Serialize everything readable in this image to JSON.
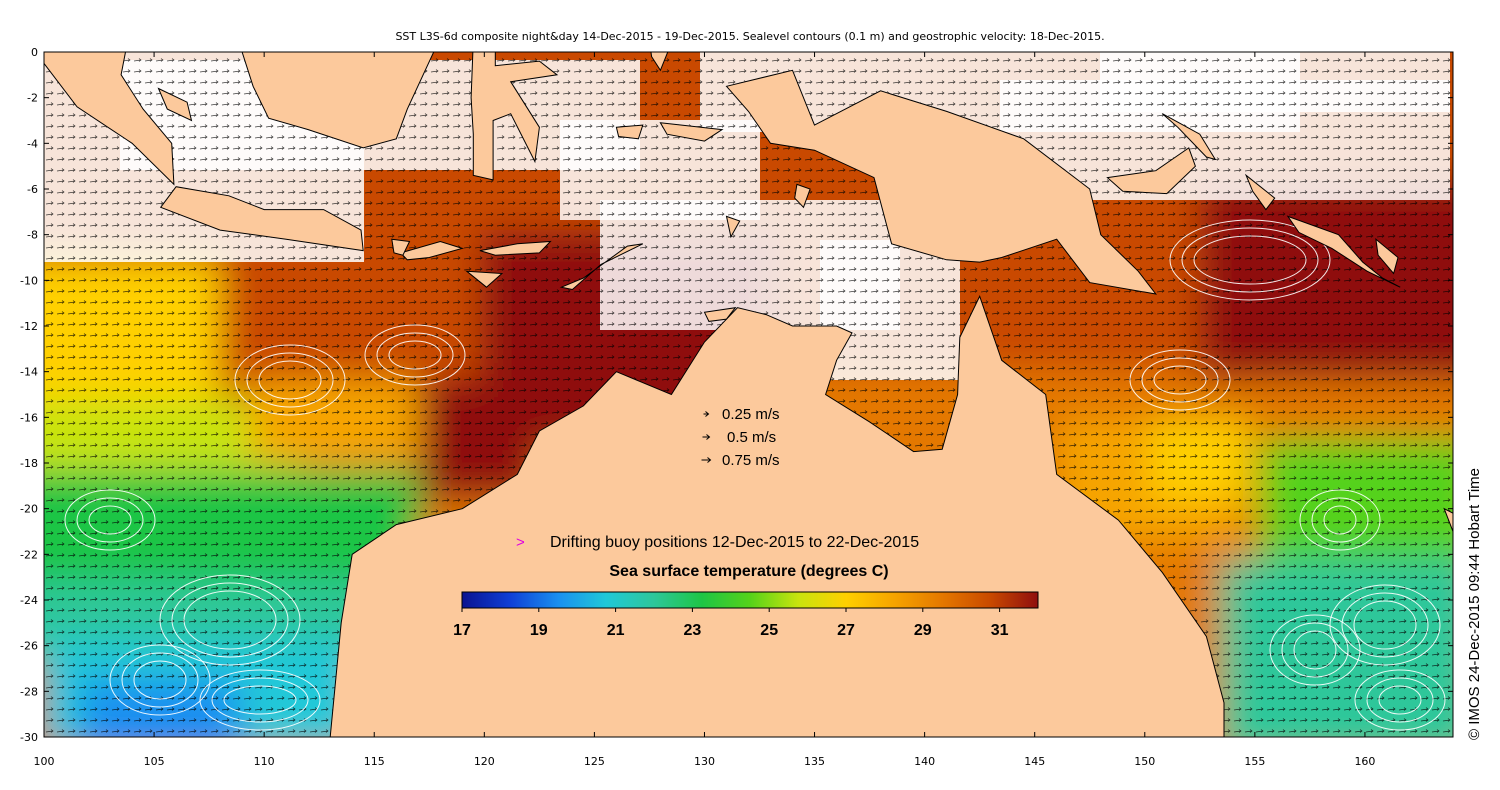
{
  "title": "SST L3S-6d composite night&day 14-Dec-2015 - 19-Dec-2015. Sealevel contours (0.1 m) and geostrophic velocity: 18-Dec-2015.",
  "credit": "© IMOS 24-Dec-2015 09:44 Hobart Time",
  "axes": {
    "x_ticks": [
      "100",
      "105",
      "110",
      "115",
      "120",
      "125",
      "130",
      "135",
      "140",
      "145",
      "150",
      "155",
      "160"
    ],
    "y_ticks": [
      "0",
      "-2",
      "-4",
      "-6",
      "-8",
      "-10",
      "-12",
      "-14",
      "-16",
      "-18",
      "-20",
      "-22",
      "-24",
      "-26",
      "-28",
      "-30"
    ],
    "lon_range": [
      100,
      164
    ],
    "lat_range": [
      -30,
      0
    ]
  },
  "legend": {
    "velocity": [
      {
        "label": "0.25 m/s",
        "speed": 0.25
      },
      {
        "label": "0.5 m/s",
        "speed": 0.5
      },
      {
        "label": "0.75 m/s",
        "speed": 0.75
      }
    ],
    "buoy_marker": ">",
    "buoy_label": "Drifting buoy positions 12-Dec-2015 to 22-Dec-2015",
    "colorbar_title": "Sea surface temperature (degrees C)",
    "colorbar_ticks": [
      "17",
      "19",
      "21",
      "23",
      "25",
      "27",
      "29",
      "31"
    ],
    "colorbar_range": [
      17,
      32
    ]
  },
  "colors": {
    "land": "#FCC99C",
    "coast": "#000000",
    "buoy": "#E000E0",
    "colormap": [
      "#0A1390",
      "#0F3FD6",
      "#1A8FF0",
      "#20C8D8",
      "#2DC79A",
      "#1EC545",
      "#55D21A",
      "#C8E40E",
      "#FFD000",
      "#F6A400",
      "#E47800",
      "#C94A00",
      "#8F0E0E"
    ]
  },
  "regions": [
    {
      "name": "Australia"
    },
    {
      "name": "New Guinea"
    },
    {
      "name": "Borneo"
    },
    {
      "name": "Sumatra"
    },
    {
      "name": "Java"
    },
    {
      "name": "Sulawesi"
    },
    {
      "name": "Timor"
    },
    {
      "name": "New Caledonia"
    },
    {
      "name": "Solomon Islands"
    }
  ]
}
